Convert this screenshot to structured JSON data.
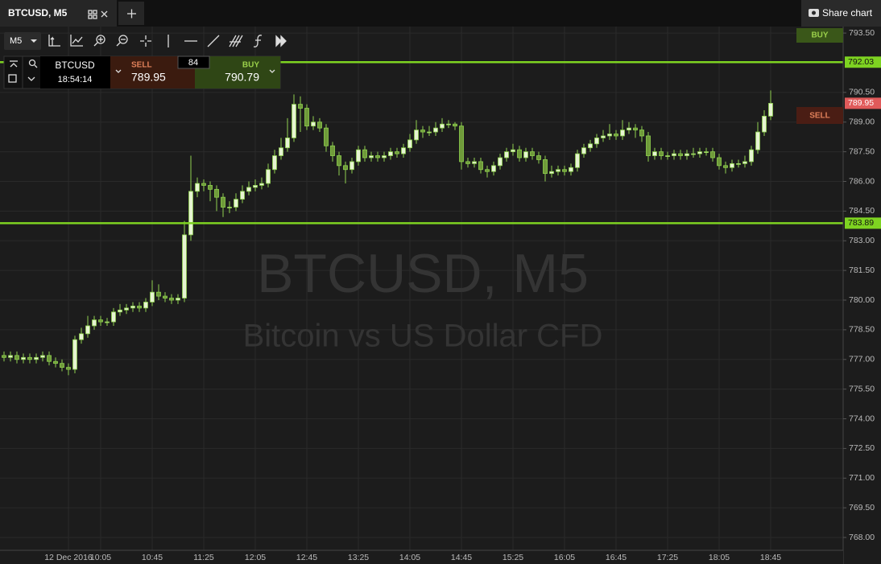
{
  "tab": {
    "title": "BTCUSD, M5",
    "share": "Share chart"
  },
  "toolbar": {
    "timeframe": "M5"
  },
  "ticket": {
    "symbol": "BTCUSD",
    "time": "18:54:14",
    "sell_label": "SELL",
    "sell_price": "789.95",
    "spread": "84",
    "buy_label": "BUY",
    "buy_price": "790.79"
  },
  "side_buttons": {
    "buy": "BUY",
    "sell": "SELL"
  },
  "chart_data": {
    "type": "candlestick",
    "title": "BTCUSD, M5",
    "subtitle": "Bitcoin vs US Dollar CFD",
    "up_color": "#e6f4d2",
    "down_color": "#6f9a3a",
    "wick_color": "#8fd14f",
    "grid": true,
    "ylim": [
      767.35,
      793.83
    ],
    "yticks": [
      {
        "value": 768,
        "label": "768.00"
      },
      {
        "value": 769.5,
        "label": "769.50"
      },
      {
        "value": 771,
        "label": "771.00"
      },
      {
        "value": 772.5,
        "label": "772.50"
      },
      {
        "value": 774,
        "label": "774.00"
      },
      {
        "value": 775.5,
        "label": "775.50"
      },
      {
        "value": 777,
        "label": "777.00"
      },
      {
        "value": 778.5,
        "label": "778.50"
      },
      {
        "value": 780,
        "label": "780.00"
      },
      {
        "value": 781.5,
        "label": "781.50"
      },
      {
        "value": 783,
        "label": "783.00"
      },
      {
        "value": 784.5,
        "label": "784.50"
      },
      {
        "value": 786,
        "label": "786.00"
      },
      {
        "value": 787.5,
        "label": "787.50"
      },
      {
        "value": 789,
        "label": "789.00"
      },
      {
        "value": 790.5,
        "label": "790.50"
      },
      {
        "value": 793.5,
        "label": "793.50"
      }
    ],
    "price_lines": [
      {
        "value": 792.03,
        "color": "#7ed321",
        "line": true
      },
      {
        "value": 783.89,
        "color": "#7ed321",
        "line": true
      },
      {
        "value": 789.95,
        "color": "#e05a5a",
        "line": false
      }
    ],
    "categories": [
      null,
      null,
      null,
      null,
      null,
      null,
      null,
      null,
      null,
      null,
      "12 Dec 2016",
      null,
      null,
      null,
      null,
      "10:05",
      null,
      null,
      null,
      null,
      null,
      null,
      null,
      "10:45",
      null,
      null,
      null,
      null,
      null,
      null,
      null,
      "11:25",
      null,
      null,
      null,
      null,
      null,
      null,
      null,
      "12:05",
      null,
      null,
      null,
      null,
      null,
      null,
      null,
      "12:45",
      null,
      null,
      null,
      null,
      null,
      null,
      null,
      "13:25",
      null,
      null,
      null,
      null,
      null,
      null,
      null,
      "14:05",
      null,
      null,
      null,
      null,
      null,
      null,
      null,
      "14:45",
      null,
      null,
      null,
      null,
      null,
      null,
      null,
      "15:25",
      null,
      null,
      null,
      null,
      null,
      null,
      null,
      "16:05",
      null,
      null,
      null,
      null,
      null,
      null,
      null,
      "16:45",
      null,
      null,
      null,
      null,
      null,
      null,
      null,
      "17:25",
      null,
      null,
      null,
      null,
      null,
      null,
      null,
      "18:05",
      null,
      null,
      null,
      null,
      null,
      null,
      null,
      "18:45"
    ],
    "open": [
      777.2,
      777.1,
      777.2,
      777.0,
      777.1,
      777.0,
      777.1,
      777.2,
      776.9,
      776.8,
      776.6,
      776.5,
      778.0,
      778.3,
      778.7,
      779.0,
      778.9,
      778.9,
      779.4,
      779.5,
      779.6,
      779.7,
      779.6,
      779.9,
      780.4,
      780.2,
      780.1,
      780.0,
      780.1,
      783.3,
      785.5,
      785.9,
      785.8,
      785.6,
      785.2,
      784.7,
      784.7,
      785.1,
      785.5,
      785.7,
      785.8,
      785.9,
      786.6,
      787.3,
      787.7,
      788.2,
      789.9,
      789.7,
      788.8,
      789.0,
      788.7,
      787.8,
      787.3,
      786.8,
      786.6,
      787.0,
      787.6,
      787.2,
      787.3,
      787.2,
      787.3,
      787.5,
      787.4,
      787.7,
      788.1,
      788.6,
      788.5,
      788.5,
      788.7,
      788.9,
      788.9,
      788.8,
      787.0,
      786.9,
      787.0,
      786.6,
      786.5,
      786.8,
      787.2,
      787.5,
      787.6,
      787.2,
      787.5,
      787.3,
      787.1,
      786.4,
      786.5,
      786.6,
      786.5,
      786.7,
      787.4,
      787.7,
      787.9,
      788.2,
      788.3,
      788.4,
      788.3,
      788.6,
      788.7,
      788.6,
      788.3,
      787.3,
      787.5,
      787.3,
      787.3,
      787.4,
      787.3,
      787.4,
      787.4,
      787.5,
      787.5,
      787.2,
      786.8,
      786.7,
      786.9,
      786.9,
      787.0,
      787.6,
      788.5,
      789.3
    ],
    "high": [
      777.4,
      777.4,
      777.4,
      777.3,
      777.3,
      777.3,
      777.4,
      777.4,
      777.1,
      777.0,
      776.8,
      778.2,
      778.6,
      779.2,
      779.2,
      779.2,
      779.1,
      779.6,
      779.8,
      779.8,
      779.9,
      779.9,
      780.1,
      781.0,
      780.8,
      780.4,
      780.3,
      780.3,
      784.0,
      787.3,
      786.2,
      786.1,
      786.0,
      785.8,
      785.4,
      785.0,
      785.4,
      785.8,
      786.0,
      786.1,
      786.2,
      786.9,
      787.6,
      788.2,
      789.2,
      790.4,
      790.3,
      789.9,
      789.3,
      789.2,
      788.9,
      788.0,
      787.5,
      787.0,
      787.2,
      787.8,
      787.8,
      787.5,
      787.5,
      787.5,
      787.7,
      787.7,
      787.9,
      788.4,
      789.1,
      788.8,
      788.8,
      789.0,
      789.2,
      789.1,
      789.0,
      789.0,
      787.2,
      787.2,
      787.2,
      786.8,
      787.0,
      787.4,
      787.7,
      787.9,
      787.8,
      787.7,
      787.7,
      787.5,
      787.3,
      786.8,
      786.8,
      786.8,
      786.9,
      787.6,
      787.9,
      788.1,
      788.4,
      788.6,
      788.9,
      788.6,
      789.1,
      789.0,
      788.9,
      788.8,
      788.5,
      787.7,
      787.7,
      787.5,
      787.6,
      787.6,
      787.6,
      787.7,
      787.7,
      787.7,
      787.7,
      787.4,
      787.0,
      787.1,
      787.1,
      787.3,
      787.8,
      789.0,
      789.6,
      790.6
    ],
    "low": [
      776.9,
      776.9,
      776.8,
      776.8,
      776.8,
      776.8,
      776.9,
      776.7,
      776.6,
      776.4,
      776.2,
      776.3,
      777.8,
      778.1,
      778.5,
      778.7,
      778.7,
      778.7,
      779.2,
      779.3,
      779.4,
      779.4,
      779.4,
      779.7,
      780.0,
      779.9,
      779.8,
      779.8,
      779.9,
      783.0,
      785.2,
      785.5,
      785.0,
      784.5,
      784.2,
      784.4,
      784.5,
      784.9,
      785.3,
      785.5,
      785.6,
      785.7,
      786.4,
      787.1,
      787.5,
      788.0,
      788.5,
      788.6,
      788.6,
      788.5,
      787.5,
      787.0,
      786.3,
      785.9,
      786.4,
      786.8,
      787.0,
      787.0,
      787.0,
      787.0,
      787.1,
      787.2,
      787.2,
      787.5,
      787.9,
      788.2,
      788.3,
      788.3,
      788.5,
      788.7,
      788.6,
      786.6,
      786.7,
      786.7,
      786.4,
      786.2,
      786.3,
      786.6,
      787.0,
      787.3,
      787.0,
      787.0,
      787.1,
      786.9,
      786.0,
      786.2,
      786.3,
      786.3,
      786.3,
      786.5,
      787.2,
      787.5,
      787.7,
      788.0,
      788.1,
      788.1,
      788.1,
      788.4,
      788.2,
      788.0,
      787.0,
      787.1,
      787.1,
      787.1,
      787.1,
      787.1,
      787.1,
      787.2,
      787.2,
      787.3,
      787.0,
      786.6,
      786.4,
      786.5,
      786.7,
      786.7,
      786.8,
      787.4,
      788.3,
      789.1
    ],
    "close": [
      777.1,
      777.2,
      777.0,
      777.1,
      777.0,
      777.1,
      777.2,
      776.9,
      776.8,
      776.6,
      776.5,
      778.0,
      778.3,
      778.7,
      779.0,
      778.9,
      778.9,
      779.4,
      779.5,
      779.6,
      779.7,
      779.6,
      779.9,
      780.4,
      780.2,
      780.1,
      780.0,
      780.1,
      783.3,
      785.5,
      785.9,
      785.8,
      785.6,
      785.2,
      784.7,
      784.7,
      785.1,
      785.5,
      785.7,
      785.8,
      785.9,
      786.6,
      787.3,
      787.7,
      788.2,
      789.9,
      789.7,
      788.8,
      789.0,
      788.7,
      787.8,
      787.3,
      786.8,
      786.6,
      787.0,
      787.6,
      787.2,
      787.3,
      787.2,
      787.3,
      787.5,
      787.4,
      787.7,
      788.1,
      788.6,
      788.5,
      788.5,
      788.7,
      788.9,
      788.9,
      788.8,
      787.0,
      786.9,
      787.0,
      786.6,
      786.5,
      786.8,
      787.2,
      787.5,
      787.6,
      787.2,
      787.5,
      787.3,
      787.1,
      786.4,
      786.5,
      786.6,
      786.5,
      786.7,
      787.4,
      787.7,
      787.9,
      788.2,
      788.3,
      788.4,
      788.3,
      788.6,
      788.7,
      788.6,
      788.3,
      787.3,
      787.5,
      787.3,
      787.3,
      787.4,
      787.3,
      787.4,
      787.4,
      787.5,
      787.5,
      787.2,
      786.8,
      786.7,
      786.9,
      786.9,
      787.0,
      787.6,
      788.5,
      789.3,
      789.95
    ]
  }
}
